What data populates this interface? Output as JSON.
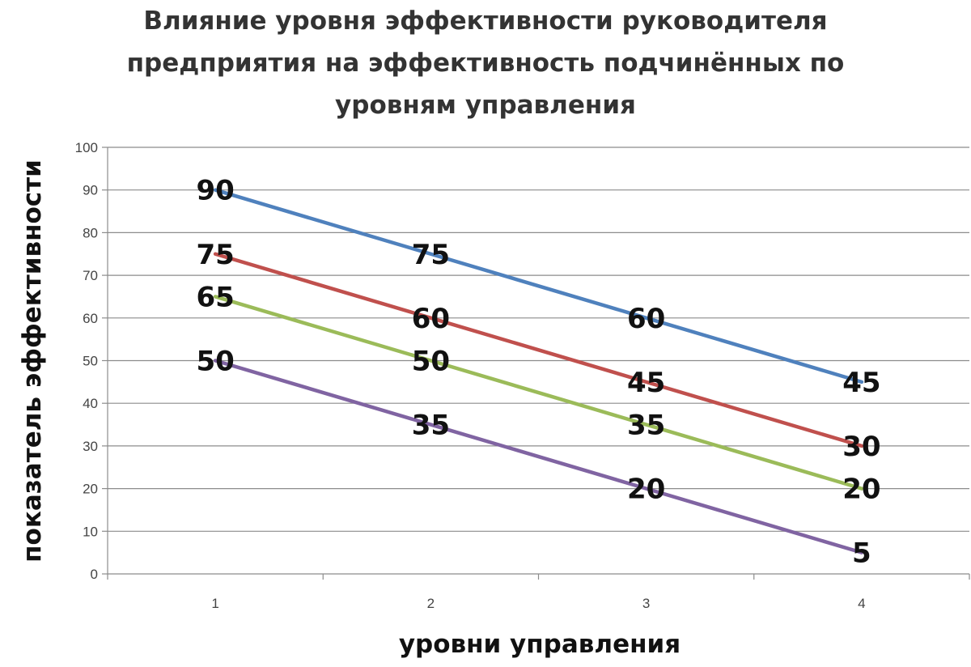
{
  "chart_data": {
    "type": "line",
    "title": "Влияние уровня эффективности руководителя предприятия на эффективность подчинённых по уровням управления",
    "title_lines": [
      "Влияние уровня эффективности  руководителя",
      "предприятия на эффективность подчинённых по",
      "уровням управления"
    ],
    "xlabel": "уровни управления",
    "ylabel": "показатель эффективности",
    "x": [
      "1",
      "2",
      "3",
      "4"
    ],
    "y_ticks": [
      "0",
      "10",
      "20",
      "30",
      "40",
      "50",
      "60",
      "70",
      "80",
      "90",
      "100"
    ],
    "ylim": [
      0,
      100
    ],
    "grid": "horizontal",
    "legend": "none",
    "series": [
      {
        "color": "#4f81bd",
        "values": [
          90,
          75,
          60,
          45
        ]
      },
      {
        "color": "#c0504d",
        "values": [
          75,
          60,
          45,
          30
        ]
      },
      {
        "color": "#9bbb59",
        "values": [
          65,
          50,
          35,
          20
        ]
      },
      {
        "color": "#8064a2",
        "values": [
          50,
          35,
          20,
          5
        ]
      }
    ]
  }
}
